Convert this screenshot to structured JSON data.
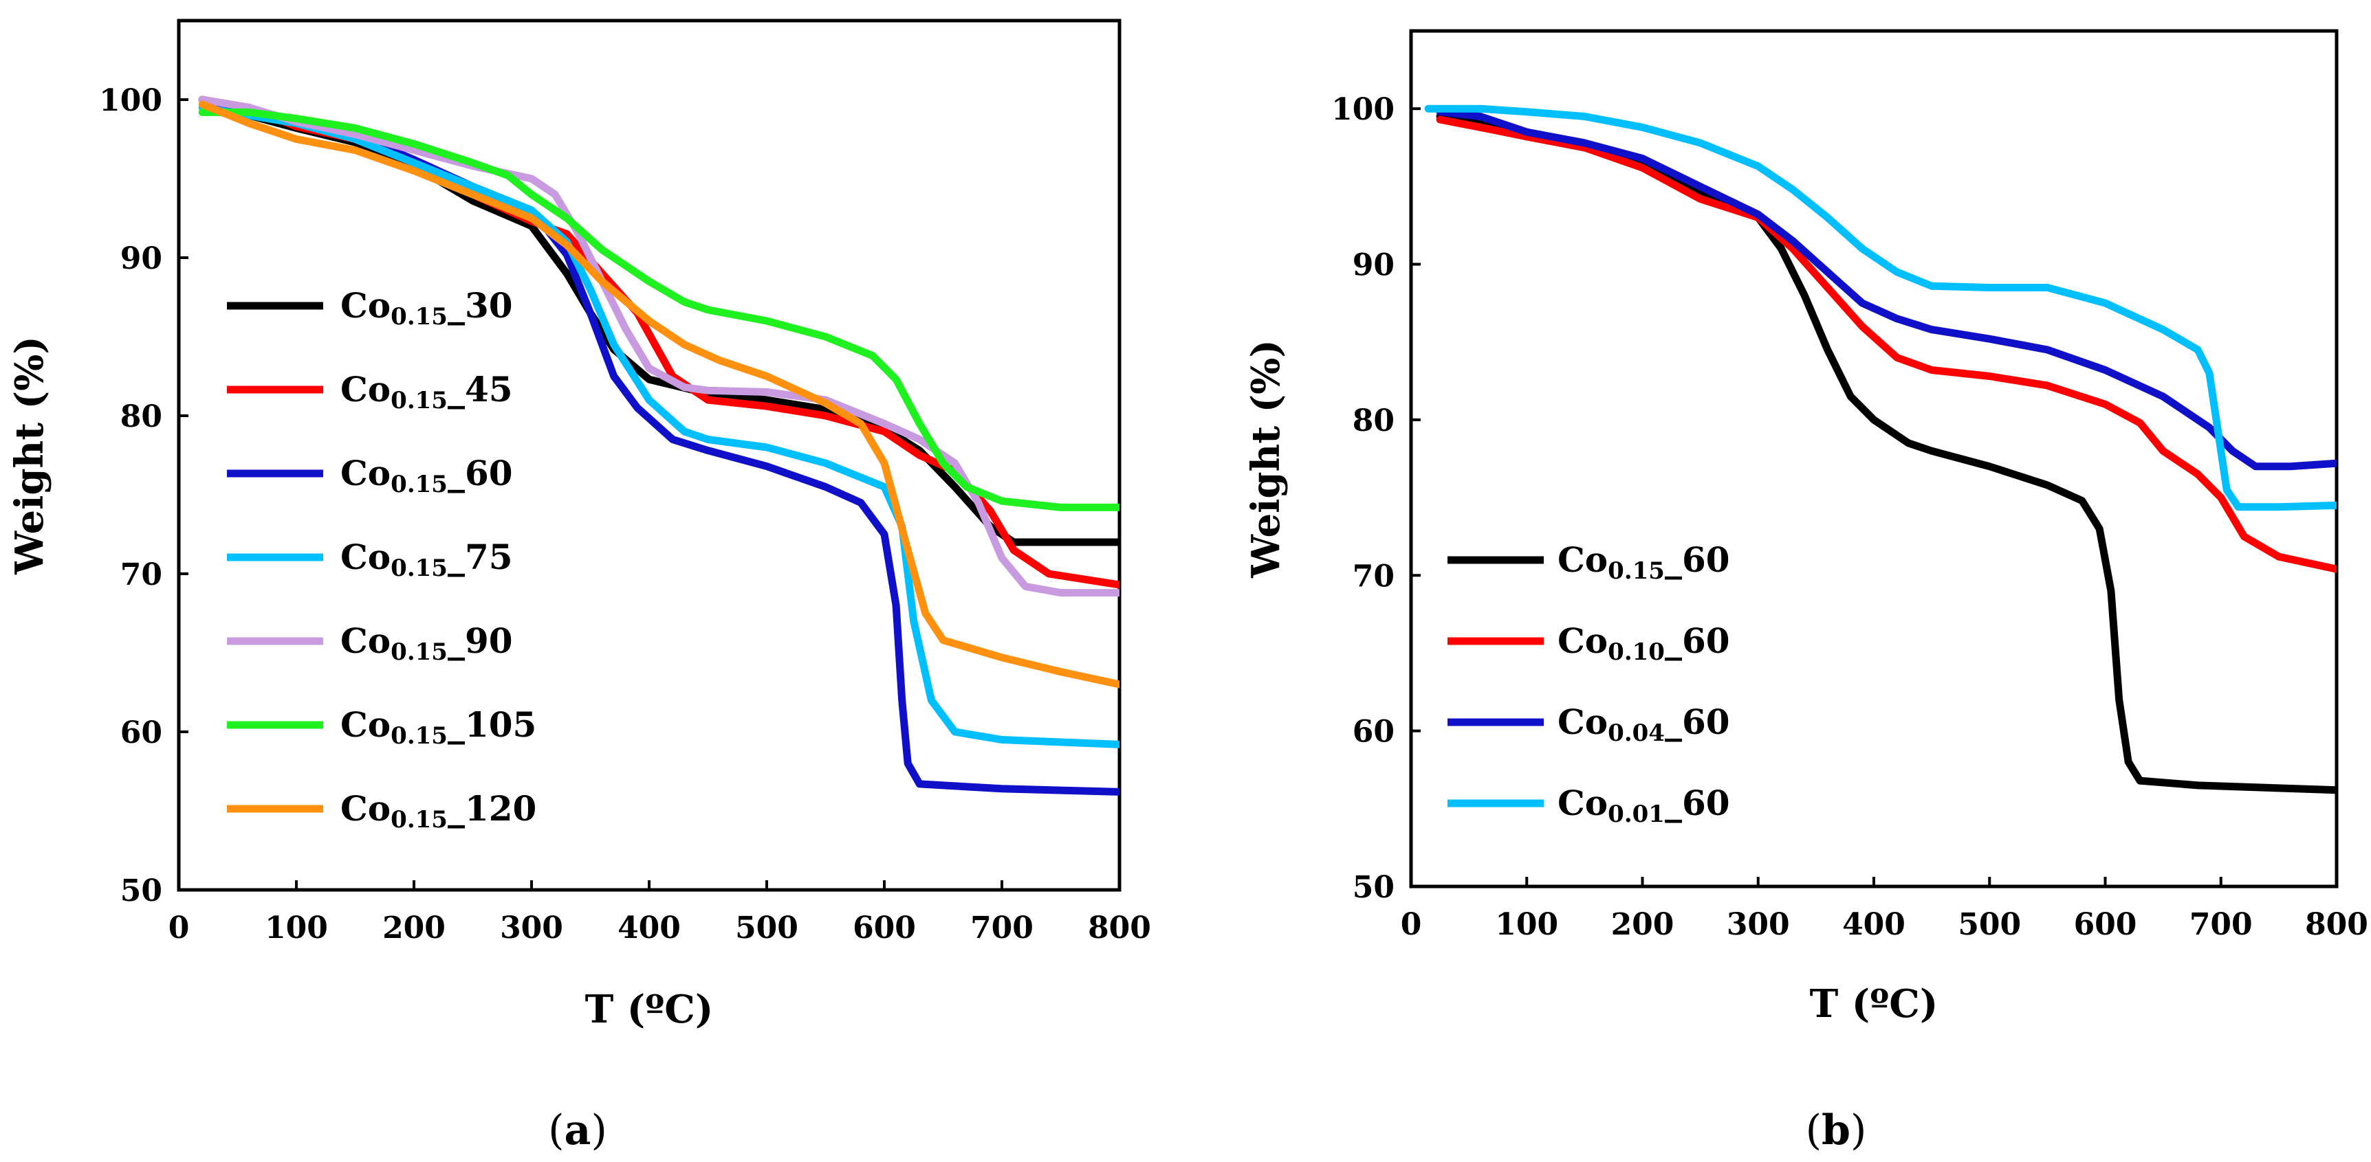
{
  "chart_data": [
    {
      "id": "a",
      "type": "line",
      "caption_letter": "a",
      "xlabel": "T (ºC)",
      "ylabel": "Weight (%)",
      "xlim": [
        0,
        800
      ],
      "ylim": [
        50,
        105
      ],
      "xticks": [
        0,
        100,
        200,
        300,
        400,
        500,
        600,
        700,
        800
      ],
      "yticks": [
        50,
        60,
        70,
        80,
        90,
        100
      ],
      "legend_position": "left",
      "series": [
        {
          "name": "Co0.15_30",
          "prefix": "Co",
          "subscript": "0.15",
          "suffix": "_30",
          "color": "#000000",
          "points": [
            [
              20,
              100
            ],
            [
              60,
              99
            ],
            [
              100,
              98.2
            ],
            [
              150,
              97.3
            ],
            [
              200,
              95.8
            ],
            [
              250,
              93.6
            ],
            [
              300,
              92
            ],
            [
              330,
              89
            ],
            [
              350,
              86.5
            ],
            [
              370,
              84.2
            ],
            [
              400,
              82.3
            ],
            [
              450,
              81.4
            ],
            [
              500,
              81
            ],
            [
              550,
              80.4
            ],
            [
              600,
              79.2
            ],
            [
              630,
              77.8
            ],
            [
              660,
              75.5
            ],
            [
              690,
              73
            ],
            [
              710,
              72
            ],
            [
              800,
              72
            ]
          ]
        },
        {
          "name": "Co0.15_45",
          "prefix": "Co",
          "subscript": "0.15",
          "suffix": "_45",
          "color": "#ff0000",
          "points": [
            [
              20,
              100
            ],
            [
              60,
              99.5
            ],
            [
              100,
              98.3
            ],
            [
              150,
              97.5
            ],
            [
              200,
              96
            ],
            [
              250,
              94
            ],
            [
              300,
              92.3
            ],
            [
              330,
              91.5
            ],
            [
              360,
              89
            ],
            [
              390,
              86.5
            ],
            [
              420,
              82.5
            ],
            [
              450,
              81
            ],
            [
              500,
              80.6
            ],
            [
              550,
              80
            ],
            [
              600,
              79
            ],
            [
              630,
              77.5
            ],
            [
              660,
              76.5
            ],
            [
              690,
              74
            ],
            [
              710,
              71.5
            ],
            [
              740,
              70
            ],
            [
              800,
              69.3
            ]
          ]
        },
        {
          "name": "Co0.15_60",
          "prefix": "Co",
          "subscript": "0.15",
          "suffix": "_60",
          "color": "#1010c8",
          "points": [
            [
              20,
              100
            ],
            [
              60,
              99
            ],
            [
              100,
              98.6
            ],
            [
              150,
              97.8
            ],
            [
              200,
              96.2
            ],
            [
              250,
              94.5
            ],
            [
              300,
              93
            ],
            [
              330,
              90.2
            ],
            [
              350,
              86.5
            ],
            [
              370,
              82.5
            ],
            [
              390,
              80.5
            ],
            [
              420,
              78.5
            ],
            [
              450,
              77.8
            ],
            [
              500,
              76.8
            ],
            [
              550,
              75.5
            ],
            [
              580,
              74.5
            ],
            [
              600,
              72.5
            ],
            [
              610,
              68
            ],
            [
              615,
              62
            ],
            [
              620,
              58
            ],
            [
              630,
              56.7
            ],
            [
              700,
              56.4
            ],
            [
              800,
              56.2
            ]
          ]
        },
        {
          "name": "Co0.15_75",
          "prefix": "Co",
          "subscript": "0.15",
          "suffix": "_75",
          "color": "#00bfff",
          "points": [
            [
              20,
              99.5
            ],
            [
              60,
              99
            ],
            [
              100,
              98.5
            ],
            [
              150,
              97.5
            ],
            [
              200,
              96
            ],
            [
              250,
              94.5
            ],
            [
              300,
              93
            ],
            [
              330,
              91
            ],
            [
              350,
              88
            ],
            [
              370,
              84.5
            ],
            [
              400,
              81
            ],
            [
              430,
              79
            ],
            [
              450,
              78.5
            ],
            [
              500,
              78
            ],
            [
              550,
              77
            ],
            [
              600,
              75.5
            ],
            [
              615,
              73
            ],
            [
              625,
              67
            ],
            [
              640,
              62
            ],
            [
              660,
              60
            ],
            [
              700,
              59.5
            ],
            [
              800,
              59.2
            ]
          ]
        },
        {
          "name": "Co0.15_90",
          "prefix": "Co",
          "subscript": "0.15",
          "suffix": "_90",
          "color": "#c89be0",
          "points": [
            [
              20,
              100
            ],
            [
              60,
              99.5
            ],
            [
              100,
              98.6
            ],
            [
              150,
              97.8
            ],
            [
              200,
              96.8
            ],
            [
              250,
              95.8
            ],
            [
              300,
              95
            ],
            [
              320,
              94
            ],
            [
              340,
              91.5
            ],
            [
              360,
              88.5
            ],
            [
              380,
              85.5
            ],
            [
              400,
              83
            ],
            [
              430,
              81.8
            ],
            [
              450,
              81.6
            ],
            [
              500,
              81.5
            ],
            [
              550,
              81
            ],
            [
              600,
              79.5
            ],
            [
              630,
              78.5
            ],
            [
              660,
              77
            ],
            [
              680,
              74.5
            ],
            [
              700,
              71
            ],
            [
              720,
              69.2
            ],
            [
              750,
              68.8
            ],
            [
              800,
              68.8
            ]
          ]
        },
        {
          "name": "Co0.15_105",
          "prefix": "Co",
          "subscript": "0.15",
          "suffix": "_105",
          "color": "#1ff01f",
          "points": [
            [
              20,
              99.2
            ],
            [
              60,
              99.2
            ],
            [
              100,
              98.8
            ],
            [
              150,
              98.2
            ],
            [
              200,
              97.2
            ],
            [
              250,
              96
            ],
            [
              280,
              95.2
            ],
            [
              300,
              94
            ],
            [
              330,
              92.5
            ],
            [
              360,
              90.5
            ],
            [
              400,
              88.5
            ],
            [
              430,
              87.2
            ],
            [
              450,
              86.7
            ],
            [
              500,
              86
            ],
            [
              550,
              85
            ],
            [
              590,
              83.8
            ],
            [
              610,
              82.3
            ],
            [
              630,
              79.5
            ],
            [
              650,
              77
            ],
            [
              670,
              75.5
            ],
            [
              700,
              74.6
            ],
            [
              750,
              74.2
            ],
            [
              800,
              74.2
            ]
          ]
        },
        {
          "name": "Co0.15_120",
          "prefix": "Co",
          "subscript": "0.15",
          "suffix": "_120",
          "color": "#ff9010",
          "points": [
            [
              20,
              99.7
            ],
            [
              60,
              98.5
            ],
            [
              100,
              97.5
            ],
            [
              150,
              96.8
            ],
            [
              200,
              95.5
            ],
            [
              250,
              94
            ],
            [
              300,
              92.5
            ],
            [
              330,
              90.8
            ],
            [
              360,
              88.5
            ],
            [
              400,
              86
            ],
            [
              430,
              84.5
            ],
            [
              460,
              83.5
            ],
            [
              500,
              82.5
            ],
            [
              550,
              80.8
            ],
            [
              580,
              79.5
            ],
            [
              600,
              77
            ],
            [
              620,
              71.5
            ],
            [
              635,
              67.5
            ],
            [
              650,
              65.8
            ],
            [
              700,
              64.7
            ],
            [
              750,
              63.8
            ],
            [
              800,
              63
            ]
          ]
        }
      ]
    },
    {
      "id": "b",
      "type": "line",
      "caption_letter": "b",
      "xlabel": "T (ºC)",
      "ylabel": "Weight (%)",
      "xlim": [
        0,
        800
      ],
      "ylim": [
        50,
        105
      ],
      "xticks": [
        0,
        100,
        200,
        300,
        400,
        500,
        600,
        700,
        800
      ],
      "yticks": [
        50,
        60,
        70,
        80,
        90,
        100
      ],
      "legend_position": "lower-left",
      "series": [
        {
          "name": "Co0.15_60",
          "prefix": "Co",
          "subscript": "0.15",
          "suffix": "_60",
          "color": "#000000",
          "points": [
            [
              25,
              99.5
            ],
            [
              60,
              99
            ],
            [
              100,
              98.2
            ],
            [
              150,
              97.5
            ],
            [
              200,
              96.3
            ],
            [
              250,
              94.5
            ],
            [
              300,
              93
            ],
            [
              320,
              91
            ],
            [
              340,
              88
            ],
            [
              360,
              84.5
            ],
            [
              380,
              81.5
            ],
            [
              400,
              80
            ],
            [
              430,
              78.5
            ],
            [
              450,
              78
            ],
            [
              500,
              77
            ],
            [
              550,
              75.8
            ],
            [
              580,
              74.8
            ],
            [
              595,
              73
            ],
            [
              605,
              69
            ],
            [
              612,
              62
            ],
            [
              620,
              58
            ],
            [
              630,
              56.8
            ],
            [
              680,
              56.5
            ],
            [
              800,
              56.2
            ]
          ]
        },
        {
          "name": "Co0.10_60",
          "prefix": "Co",
          "subscript": "0.10",
          "suffix": "_60",
          "color": "#ff0000",
          "points": [
            [
              25,
              99.3
            ],
            [
              60,
              98.8
            ],
            [
              100,
              98.2
            ],
            [
              150,
              97.5
            ],
            [
              200,
              96.2
            ],
            [
              250,
              94.2
            ],
            [
              300,
              93
            ],
            [
              330,
              91
            ],
            [
              360,
              88.5
            ],
            [
              390,
              86
            ],
            [
              420,
              84
            ],
            [
              450,
              83.2
            ],
            [
              500,
              82.8
            ],
            [
              550,
              82.2
            ],
            [
              600,
              81
            ],
            [
              630,
              79.8
            ],
            [
              650,
              78
            ],
            [
              680,
              76.5
            ],
            [
              700,
              75
            ],
            [
              720,
              72.5
            ],
            [
              750,
              71.2
            ],
            [
              800,
              70.4
            ]
          ]
        },
        {
          "name": "Co0.04_60",
          "prefix": "Co",
          "subscript": "0.04",
          "suffix": "_60",
          "color": "#1010c8",
          "points": [
            [
              25,
              99.8
            ],
            [
              60,
              99.5
            ],
            [
              100,
              98.5
            ],
            [
              150,
              97.8
            ],
            [
              200,
              96.8
            ],
            [
              250,
              95
            ],
            [
              300,
              93.2
            ],
            [
              330,
              91.5
            ],
            [
              360,
              89.5
            ],
            [
              390,
              87.5
            ],
            [
              420,
              86.5
            ],
            [
              450,
              85.8
            ],
            [
              500,
              85.2
            ],
            [
              550,
              84.5
            ],
            [
              600,
              83.2
            ],
            [
              650,
              81.5
            ],
            [
              690,
              79.5
            ],
            [
              710,
              78
            ],
            [
              730,
              77
            ],
            [
              760,
              77
            ],
            [
              800,
              77.2
            ]
          ]
        },
        {
          "name": "Co0.01_60",
          "prefix": "Co",
          "subscript": "0.01",
          "suffix": "_60",
          "color": "#00bfff",
          "points": [
            [
              15,
              100
            ],
            [
              60,
              100
            ],
            [
              100,
              99.8
            ],
            [
              150,
              99.5
            ],
            [
              200,
              98.8
            ],
            [
              250,
              97.8
            ],
            [
              300,
              96.3
            ],
            [
              330,
              94.8
            ],
            [
              360,
              93
            ],
            [
              390,
              91
            ],
            [
              420,
              89.5
            ],
            [
              450,
              88.6
            ],
            [
              500,
              88.5
            ],
            [
              550,
              88.5
            ],
            [
              600,
              87.5
            ],
            [
              650,
              85.8
            ],
            [
              680,
              84.5
            ],
            [
              690,
              83
            ],
            [
              698,
              79
            ],
            [
              705,
              75.5
            ],
            [
              715,
              74.4
            ],
            [
              750,
              74.4
            ],
            [
              800,
              74.5
            ]
          ]
        }
      ]
    }
  ]
}
